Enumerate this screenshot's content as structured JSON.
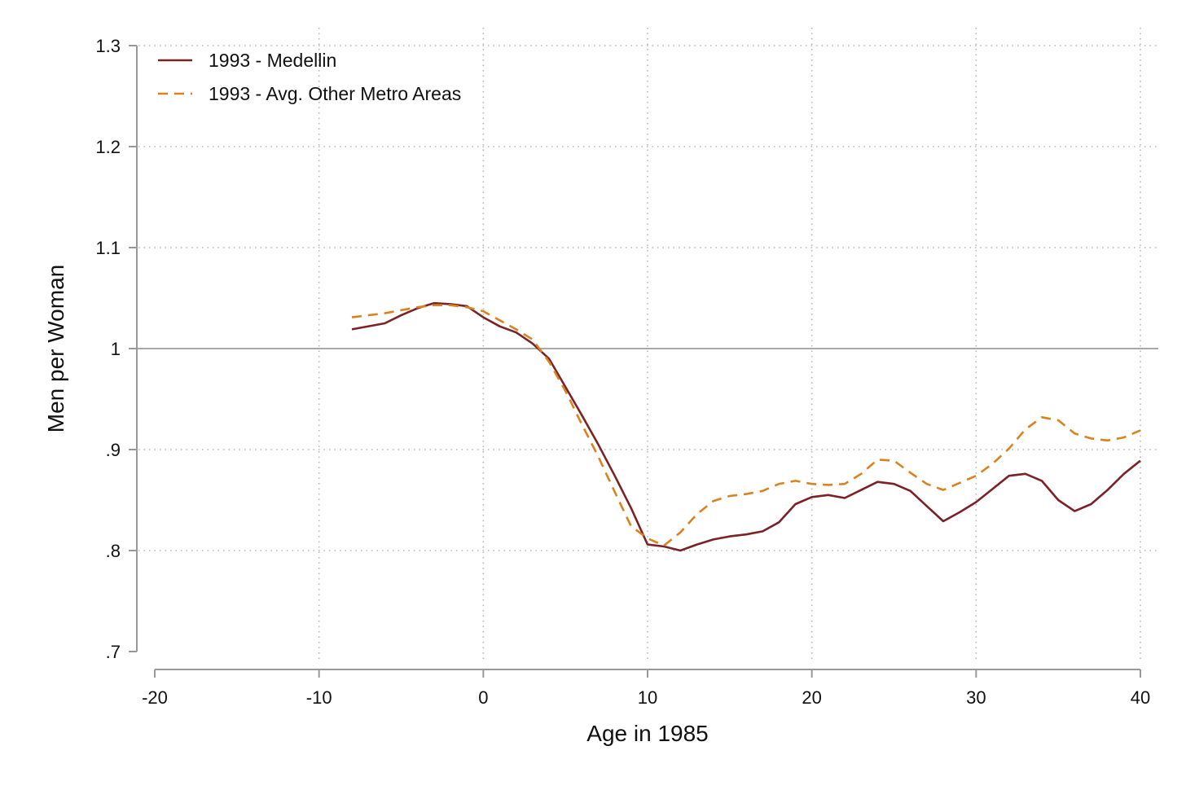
{
  "chart_data": {
    "type": "line",
    "title": "",
    "xlabel": "Age in 1985",
    "ylabel": "Men per Woman",
    "xlim": [
      -20,
      40
    ],
    "ylim": [
      0.7,
      1.3
    ],
    "x_ticks": [
      -20,
      -10,
      0,
      10,
      20,
      30,
      40
    ],
    "x_tick_labels": [
      "-20",
      "-10",
      "0",
      "10",
      "20",
      "30",
      "40"
    ],
    "y_ticks": [
      0.7,
      0.8,
      0.9,
      1.0,
      1.1,
      1.2,
      1.3
    ],
    "y_tick_labels": [
      ".7",
      ".8",
      ".9",
      "1",
      "1.1",
      "1.2",
      "1.3"
    ],
    "grid": "dotted",
    "reference_line": 1.0,
    "legend_position": "top-left",
    "series": [
      {
        "name": "1993 - Medellin",
        "style": "solid",
        "color": "#7b2226",
        "x": [
          -8,
          -6,
          -5,
          -4,
          -3,
          -2,
          -1,
          0,
          1,
          2,
          3,
          4,
          5,
          6,
          7,
          8,
          9,
          10,
          11,
          12,
          13,
          14,
          15,
          16,
          17,
          18,
          19,
          20,
          21,
          22,
          23,
          24,
          25,
          26,
          27,
          28,
          29,
          30,
          31,
          32,
          33,
          34,
          35,
          36,
          37,
          38,
          39,
          40
        ],
        "y": [
          1.019,
          1.025,
          1.033,
          1.04,
          1.045,
          1.044,
          1.042,
          1.031,
          1.022,
          1.016,
          1.005,
          0.99,
          0.962,
          0.934,
          0.905,
          0.874,
          0.842,
          0.806,
          0.804,
          0.8,
          0.806,
          0.811,
          0.814,
          0.816,
          0.819,
          0.828,
          0.846,
          0.853,
          0.855,
          0.852,
          0.86,
          0.868,
          0.866,
          0.859,
          0.844,
          0.829,
          0.838,
          0.848,
          0.861,
          0.874,
          0.876,
          0.869,
          0.85,
          0.839,
          0.846,
          0.86,
          0.876,
          0.889
        ]
      },
      {
        "name": "1993 - Avg. Other Metro Areas",
        "style": "dashed",
        "color": "#d9821f",
        "x": [
          -8,
          -6,
          -5,
          -4,
          -3,
          -2,
          -1,
          0,
          1,
          2,
          3,
          4,
          5,
          6,
          7,
          8,
          9,
          10,
          11,
          12,
          13,
          14,
          15,
          16,
          17,
          18,
          19,
          20,
          21,
          22,
          23,
          24,
          25,
          26,
          27,
          28,
          29,
          30,
          31,
          32,
          33,
          34,
          35,
          36,
          37,
          38,
          39,
          40
        ],
        "y": [
          1.031,
          1.035,
          1.038,
          1.041,
          1.043,
          1.043,
          1.041,
          1.037,
          1.028,
          1.019,
          1.009,
          0.987,
          0.958,
          0.925,
          0.893,
          0.858,
          0.824,
          0.812,
          0.805,
          0.818,
          0.836,
          0.849,
          0.854,
          0.856,
          0.859,
          0.866,
          0.869,
          0.866,
          0.865,
          0.866,
          0.876,
          0.89,
          0.889,
          0.877,
          0.866,
          0.86,
          0.867,
          0.874,
          0.886,
          0.901,
          0.92,
          0.932,
          0.929,
          0.916,
          0.911,
          0.909,
          0.912,
          0.919
        ]
      }
    ]
  }
}
